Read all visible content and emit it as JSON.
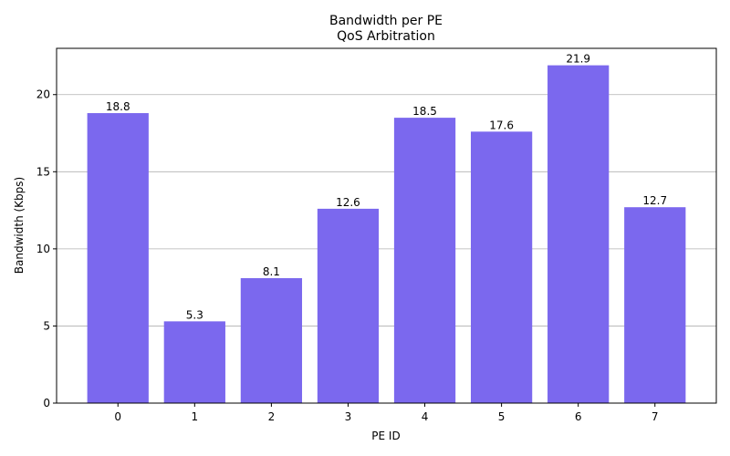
{
  "chart_data": {
    "type": "bar",
    "title": "Bandwidth per PE",
    "subtitle": "QoS Arbitration",
    "xlabel": "PE ID",
    "ylabel": "Bandwidth (Kbps)",
    "categories": [
      "0",
      "1",
      "2",
      "3",
      "4",
      "5",
      "6",
      "7"
    ],
    "values": [
      18.8,
      5.3,
      8.1,
      12.6,
      18.5,
      17.6,
      21.9,
      12.7
    ],
    "data_labels": [
      "18.8",
      "5.3",
      "8.1",
      "12.6",
      "18.5",
      "17.6",
      "21.9",
      "12.7"
    ],
    "ylim": [
      0,
      23
    ],
    "yticks": [
      0,
      5,
      10,
      15,
      20
    ],
    "ytick_labels": [
      "0",
      "5",
      "10",
      "15",
      "20"
    ],
    "grid": "y",
    "bar_color": "#7b68ee",
    "grid_color": "#b0b0b0",
    "legend": "none"
  }
}
